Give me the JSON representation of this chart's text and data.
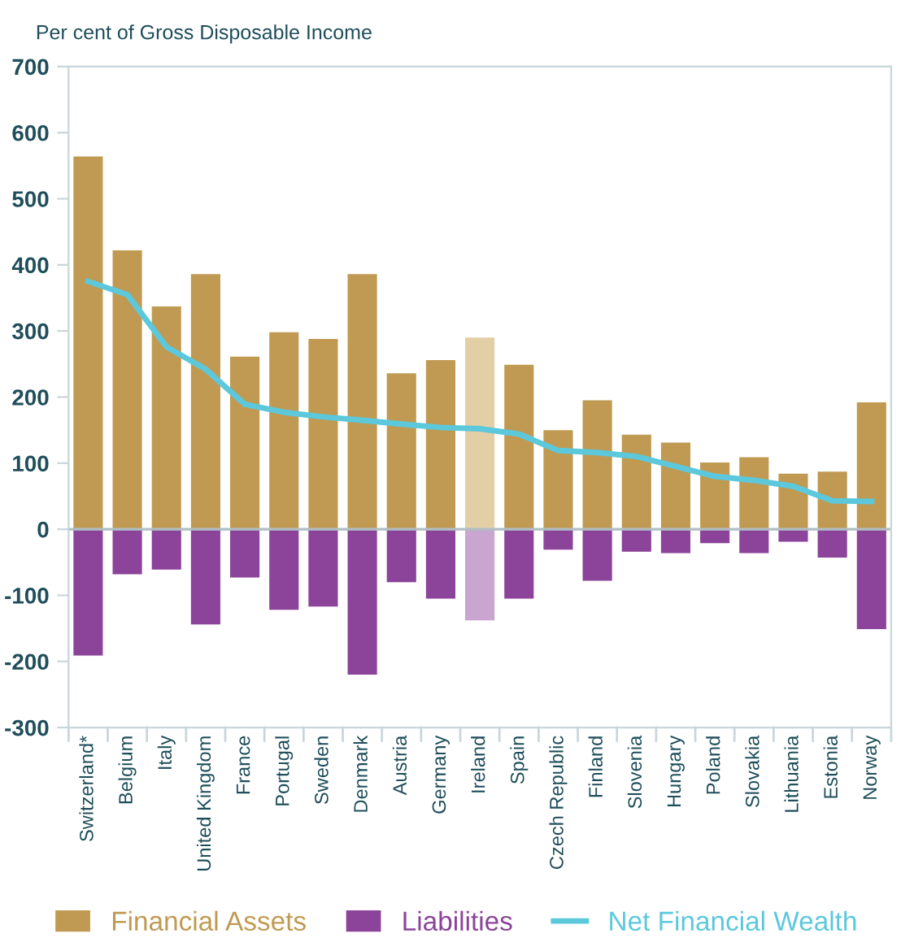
{
  "chart_data": {
    "type": "bar",
    "ylabel": "Per cent of Gross Disposable Income",
    "categories": [
      "Switzerland*",
      "Belgium",
      "Italy",
      "United Kingdom",
      "France",
      "Portugal",
      "Sweden",
      "Denmark",
      "Austria",
      "Germany",
      "Ireland",
      "Spain",
      "Czech Republic",
      "Finland",
      "Slovenia",
      "Hungary",
      "Poland",
      "Slovakia",
      "Lithuania",
      "Estonia",
      "Norway"
    ],
    "series": [
      {
        "name": "Financial Assets",
        "color": "#c09a52",
        "colors": [
          "#c09a52",
          "#c09a52",
          "#c09a52",
          "#c09a52",
          "#c09a52",
          "#c09a52",
          "#c09a52",
          "#c09a52",
          "#c09a52",
          "#c09a52",
          "#e3cfa6",
          "#c09a52",
          "#c09a52",
          "#c09a52",
          "#c09a52",
          "#c09a52",
          "#c09a52",
          "#c09a52",
          "#c09a52",
          "#c09a52",
          "#c09a52"
        ],
        "values": [
          564,
          422,
          337,
          386,
          261,
          298,
          288,
          386,
          236,
          256,
          290,
          249,
          150,
          195,
          143,
          131,
          101,
          109,
          84,
          87,
          192
        ]
      },
      {
        "name": "Liabilities",
        "color": "#8b4499",
        "colors": [
          "#8b4499",
          "#8b4499",
          "#8b4499",
          "#8b4499",
          "#8b4499",
          "#8b4499",
          "#8b4499",
          "#8b4499",
          "#8b4499",
          "#8b4499",
          "#c9a6d0",
          "#8b4499",
          "#8b4499",
          "#8b4499",
          "#8b4499",
          "#8b4499",
          "#8b4499",
          "#8b4499",
          "#8b4499",
          "#8b4499",
          "#8b4499"
        ],
        "values": [
          -191,
          -68,
          -61,
          -144,
          -73,
          -122,
          -117,
          -220,
          -80,
          -105,
          -138,
          -105,
          -31,
          -78,
          -34,
          -36,
          -21,
          -36,
          -19,
          -43,
          -151
        ]
      },
      {
        "name": "Net Financial Wealth",
        "type": "line",
        "color": "#5bc8dc",
        "values": [
          375,
          355,
          276,
          242,
          189,
          177,
          170,
          165,
          159,
          154,
          152,
          144,
          119,
          116,
          110,
          95,
          80,
          74,
          65,
          43,
          42
        ]
      }
    ],
    "ylim": [
      -300,
      700
    ],
    "yticks": [
      -300,
      -200,
      -100,
      0,
      100,
      200,
      300,
      400,
      500,
      600,
      700
    ],
    "ref_lines": [
      {
        "axis": "y",
        "value": 0,
        "color": "#b0bec5"
      }
    ],
    "stacked": true,
    "grid": false,
    "legend": "bottom",
    "marker": "none",
    "line_style": "solid"
  }
}
